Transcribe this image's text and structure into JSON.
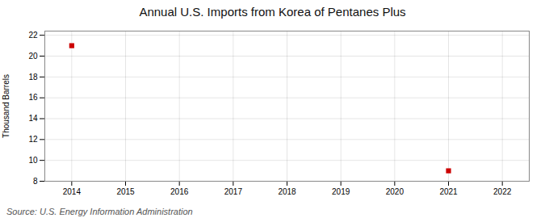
{
  "chart_data": {
    "type": "scatter",
    "title": "Annual U.S. Imports from Korea of Pentanes Plus",
    "ylabel": "Thousand Barrels",
    "annotations": [
      "Source: U.S. Energy Information Administration"
    ],
    "x": [
      2014,
      2021
    ],
    "values": [
      21,
      9
    ],
    "color": "#cc0000",
    "marker": "square",
    "xlim": [
      2013.5,
      2022.5
    ],
    "xticks": [
      2014,
      2015,
      2016,
      2017,
      2018,
      2019,
      2020,
      2021,
      2022
    ],
    "ylim": [
      8,
      22.4
    ],
    "yticks": [
      8,
      10,
      12,
      14,
      16,
      18,
      20,
      22
    ],
    "grid": true
  }
}
